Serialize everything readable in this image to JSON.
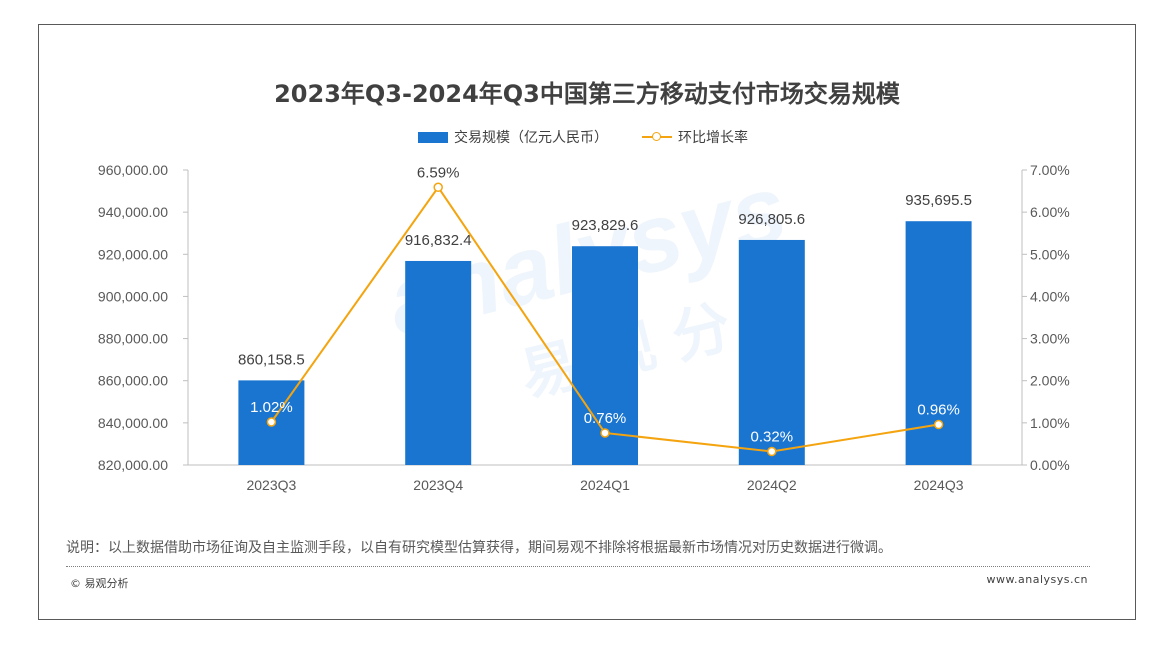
{
  "chart_data": {
    "type": "bar",
    "title": "2023年Q3-2024年Q3中国第三方移动支付市场交易规模",
    "categories": [
      "2023Q3",
      "2023Q4",
      "2024Q1",
      "2024Q2",
      "2024Q3"
    ],
    "series": [
      {
        "name": "交易规模（亿元人民币）",
        "type": "bar",
        "axis": "left",
        "values": [
          860158.5,
          916832.4,
          923829.6,
          926805.6,
          935695.5
        ],
        "labels": [
          "860,158.5",
          "916,832.4",
          "923,829.6",
          "926,805.6",
          "935,695.5"
        ]
      },
      {
        "name": "环比增长率",
        "type": "line",
        "axis": "right",
        "values": [
          1.02,
          6.59,
          0.76,
          0.32,
          0.96
        ],
        "labels": [
          "1.02%",
          "6.59%",
          "0.76%",
          "0.32%",
          "0.96%"
        ]
      }
    ],
    "y_left": {
      "ylim": [
        820000,
        960000
      ],
      "ticks": [
        "820,000.00",
        "840,000.00",
        "860,000.00",
        "880,000.00",
        "900,000.00",
        "920,000.00",
        "940,000.00",
        "960,000.00"
      ]
    },
    "y_right": {
      "ylim": [
        0,
        7
      ],
      "ticks": [
        "0.00%",
        "1.00%",
        "2.00%",
        "3.00%",
        "4.00%",
        "5.00%",
        "6.00%",
        "7.00%"
      ]
    },
    "legend_position": "top-center",
    "grid": false,
    "colors": {
      "bar": "#1a75d1",
      "line": "#f4a40f"
    }
  },
  "note": "说明：以上数据借助市场征询及自主监测手段，以自有研究模型估算获得，期间易观不排除将根据最新市场情况对历史数据进行微调。",
  "footer": {
    "copyright": "© 易观分析",
    "website": "www.analysys.cn"
  },
  "watermark": {
    "latin": "analysys",
    "chinese": "易 观 分 析"
  }
}
